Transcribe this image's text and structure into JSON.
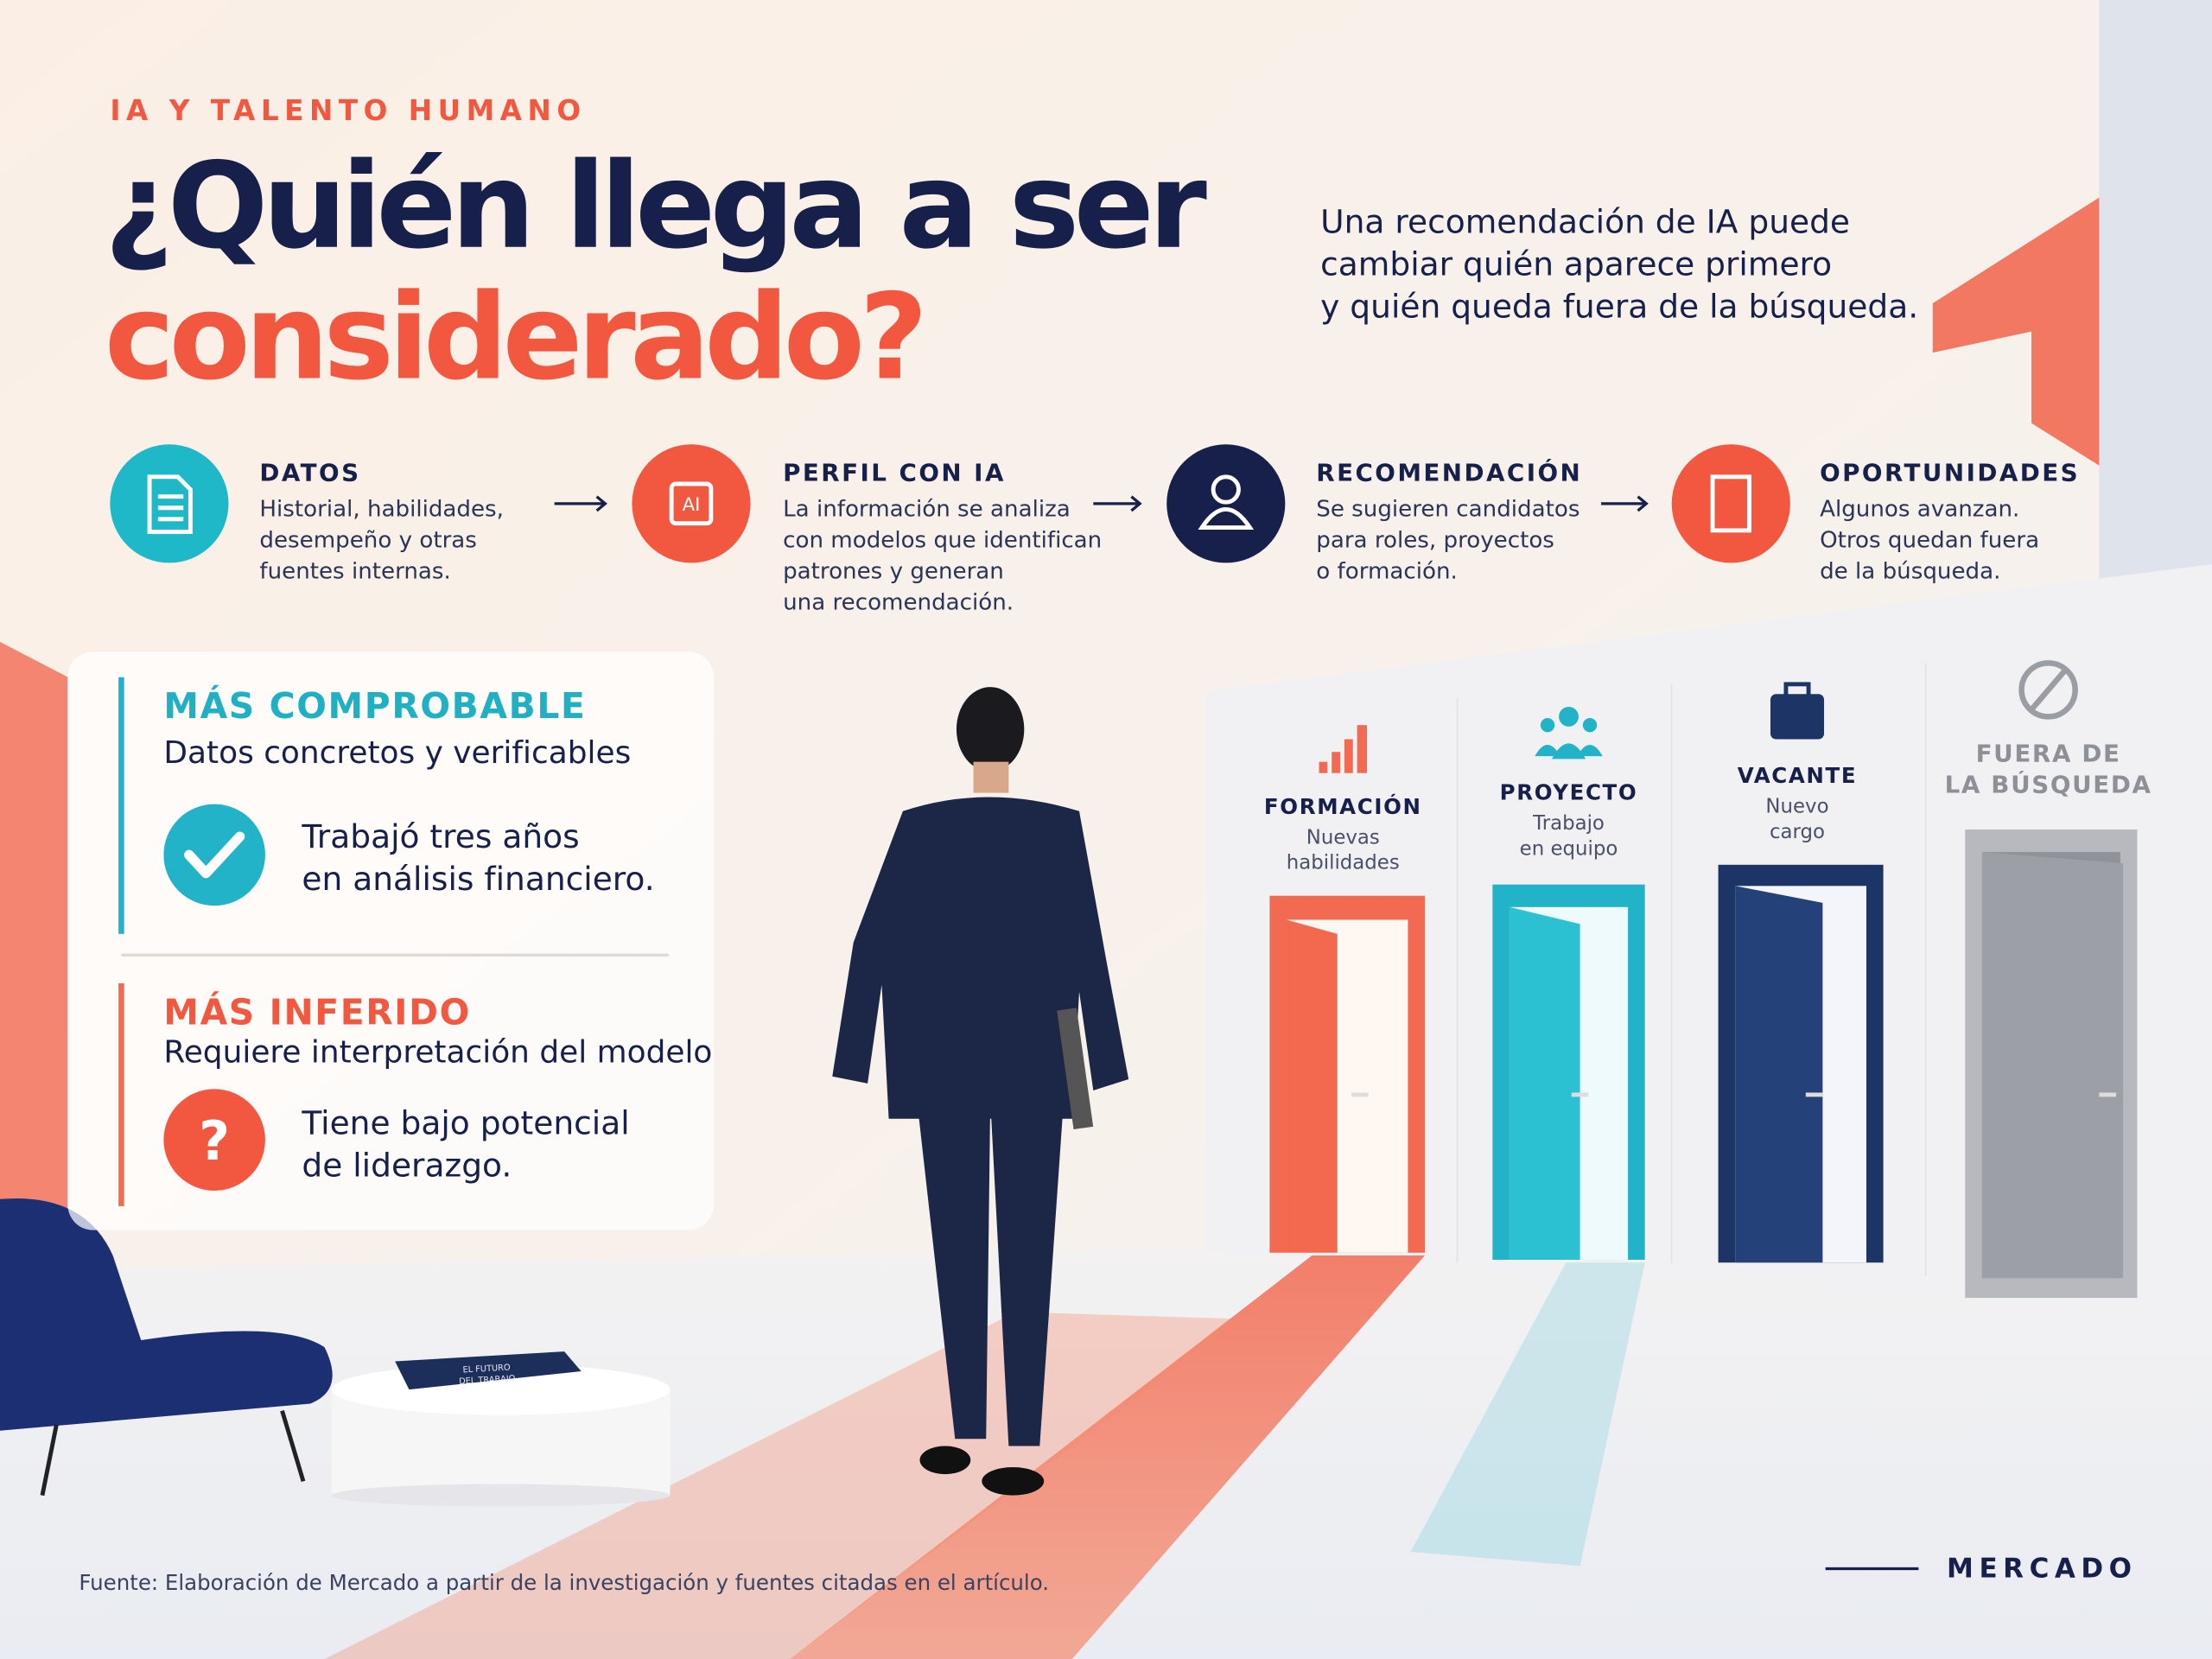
{
  "header": {
    "eyebrow": "IA Y TALENTO HUMANO",
    "title": [
      "¿Quién llega a ser",
      "considerado?"
    ],
    "subtitle": [
      "Una recomendación de IA puede",
      "cambiar quién aparece primero",
      "y quién queda fuera de la búsqueda."
    ]
  },
  "steps": [
    {
      "title": "DATOS",
      "description": [
        "Historial, habilidades,",
        "desempeño y otras",
        "fuentes internas."
      ]
    },
    {
      "title": "PERFIL CON IA",
      "icon": "AI",
      "description": [
        "La información se analiza",
        "con modelos que identifican",
        "patrones y generan",
        "una recomendación."
      ]
    },
    {
      "title": "RECOMENDACIÓN",
      "description": [
        "Se sugieren candidatos",
        "para roles, proyectos",
        "o formación."
      ]
    },
    {
      "title": "OPORTUNIDADES",
      "description": [
        "Algunos avanzan.",
        "Otros quedan fuera",
        "de la búsqueda."
      ]
    }
  ],
  "evidence": [
    {
      "title": "MÁS COMPROBABLE",
      "subtitle": "Datos concretos y verificables",
      "example": [
        "Trabajó tres años",
        "en análisis financiero."
      ]
    },
    {
      "title": "MÁS INFERIDO",
      "subtitle": "Requiere interpretación del modelo",
      "icon": "?",
      "example": [
        "Tiene bajo potencial",
        "de liderazgo."
      ]
    }
  ],
  "doors": [
    {
      "label": [
        "FORMACIÓN"
      ],
      "description": [
        "Nuevas",
        "habilidades"
      ]
    },
    {
      "label": [
        "PROYECTO"
      ],
      "description": [
        "Trabajo",
        "en equipo"
      ]
    },
    {
      "label": [
        "VACANTE"
      ],
      "description": [
        "Nuevo",
        "cargo"
      ]
    },
    {
      "label": [
        "FUERA DE",
        "LA BÚSQUEDA"
      ]
    }
  ],
  "book": {
    "title": [
      "EL FUTURO",
      "DEL TRABAJO"
    ]
  },
  "footer": {
    "source": "Fuente: Elaboración de Mercado a partir de la investigación y fuentes citadas en el artículo.",
    "brand": "MERCADO"
  }
}
